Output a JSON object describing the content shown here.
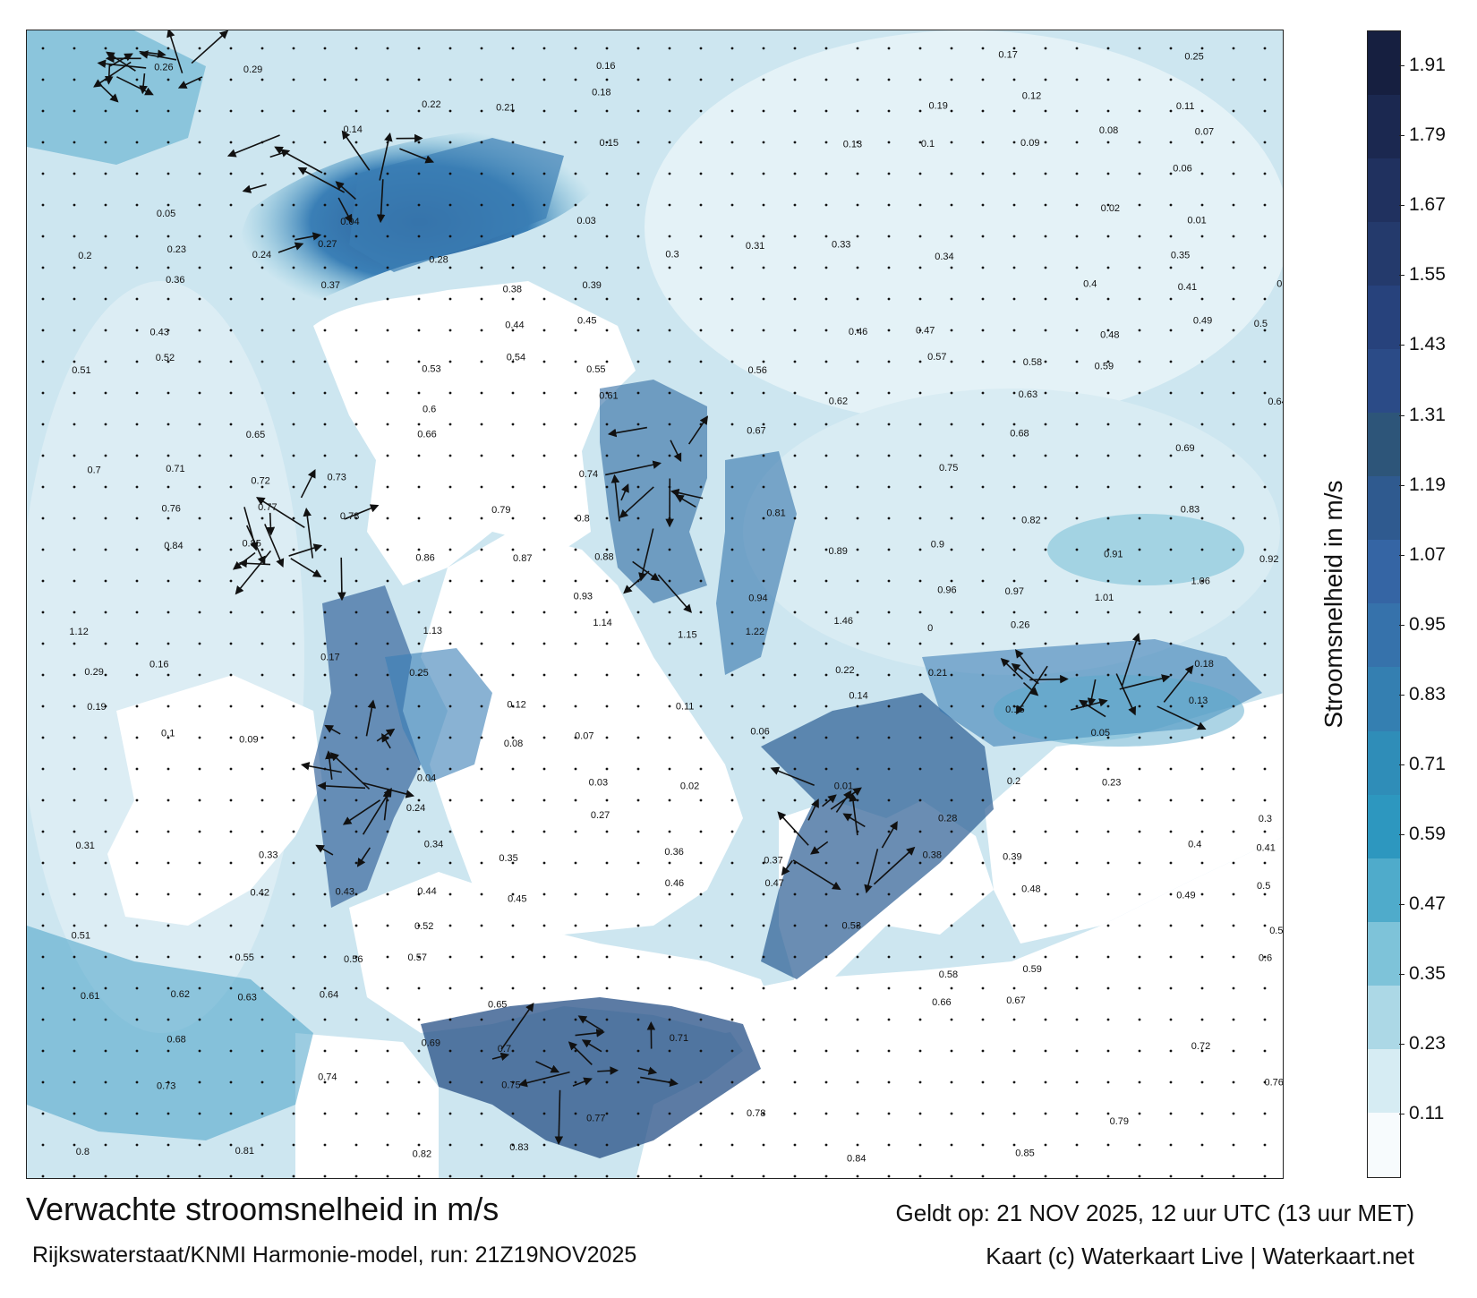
{
  "title": "Verwachte stroomsnelheid in m/s",
  "subtitle": "Rijkswaterstaat/KNMI Harmonie-model, run: 21Z19NOV2025",
  "valid_time": "Geldt op: 21 NOV 2025, 12 uur UTC (13 uur MET)",
  "credit": "Kaart (c) Waterkaart Live | Waterkaart.net",
  "colorbar": {
    "label": "Stroomsnelheid in m/s",
    "ticks": [
      "0.11",
      "0.23",
      "0.35",
      "0.47",
      "0.59",
      "0.71",
      "0.83",
      "0.95",
      "1.07",
      "1.19",
      "1.31",
      "1.43",
      "1.55",
      "1.67",
      "1.79",
      "1.91"
    ],
    "range": [
      0,
      1.97
    ],
    "colors": [
      "#f7fbfd",
      "#d6ecf3",
      "#acd8e6",
      "#7ec3d9",
      "#4fabcb",
      "#2d97bf",
      "#2f8db8",
      "#347fb1",
      "#3672ab",
      "#3565a4",
      "#2f5a8f",
      "#2d5579",
      "#2b4b87",
      "#27427c",
      "#243a6c",
      "#20315f",
      "#1b2850",
      "#161f40"
    ]
  },
  "map": {
    "water_color": "#cfe8f2",
    "land_color": "#ffffff",
    "speed_labels": [
      "0.26",
      "0.29",
      "0.16",
      "0.17",
      "0.25",
      "0.22",
      "0.21",
      "0.18",
      "0.19",
      "0.12",
      "0.11",
      "0.14",
      "0.15",
      "0.13",
      "0.1",
      "0.09",
      "0.08",
      "0.07",
      "0.06",
      "0.05",
      "0.04",
      "0.03",
      "0.02",
      "0.01",
      "0.2",
      "0.23",
      "0.24",
      "0.27",
      "0.28",
      "0.3",
      "0.31",
      "0.33",
      "0.34",
      "0.35",
      "0.36",
      "0.37",
      "0.38",
      "0.39",
      "0.4",
      "0.41",
      "0.42",
      "0.43",
      "0.44",
      "0.45",
      "0.46",
      "0.47",
      "0.48",
      "0.49",
      "0.5",
      "0.51",
      "0.52",
      "0.53",
      "0.54",
      "0.55",
      "0.56",
      "0.57",
      "0.58",
      "0.59",
      "0.6",
      "0.61",
      "0.62",
      "0.63",
      "0.64",
      "0.65",
      "0.66",
      "0.67",
      "0.68",
      "0.69",
      "0.7",
      "0.71",
      "0.72",
      "0.73",
      "0.74",
      "0.75",
      "0.76",
      "0.77",
      "0.78",
      "0.79",
      "0.8",
      "0.81",
      "0.82",
      "0.83",
      "0.84",
      "0.85",
      "0.86",
      "0.87",
      "0.88",
      "0.89",
      "0.9",
      "0.91",
      "0.92",
      "0.93",
      "0.94",
      "0.96",
      "0.97",
      "1.01",
      "1.06",
      "1.12",
      "1.13",
      "1.14",
      "1.15",
      "1.22",
      "1.46",
      "0"
    ]
  }
}
